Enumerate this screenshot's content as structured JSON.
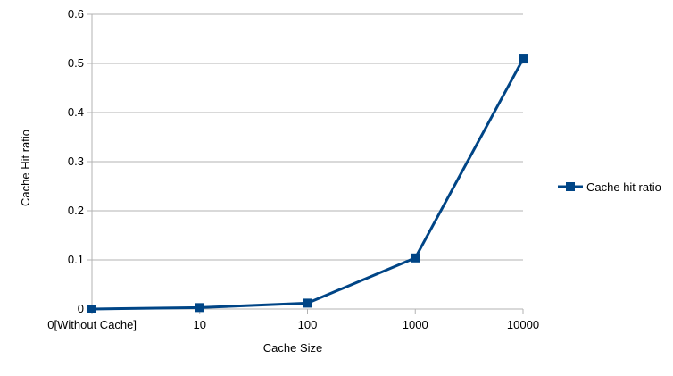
{
  "chart_data": {
    "type": "line",
    "title": "",
    "xlabel": "Cache Size",
    "ylabel": "Cache Hit ratio",
    "categories": [
      "0[Without Cache]",
      "10",
      "100",
      "1000",
      "10000"
    ],
    "series": [
      {
        "name": "Cache hit ratio",
        "values": [
          0,
          0.003,
          0.012,
          0.104,
          0.509
        ],
        "color": "#004586",
        "marker": "square"
      }
    ],
    "ylim": [
      0,
      0.6
    ],
    "yticks": [
      0,
      0.1,
      0.2,
      0.3,
      0.4,
      0.5,
      0.6
    ],
    "ytick_labels": [
      "0",
      "0.1",
      "0.2",
      "0.3",
      "0.4",
      "0.5",
      "0.6"
    ],
    "grid": true,
    "grid_color": "#b3b3b3",
    "legend": {
      "placement": "right",
      "entries": [
        "Cache hit ratio"
      ]
    }
  }
}
